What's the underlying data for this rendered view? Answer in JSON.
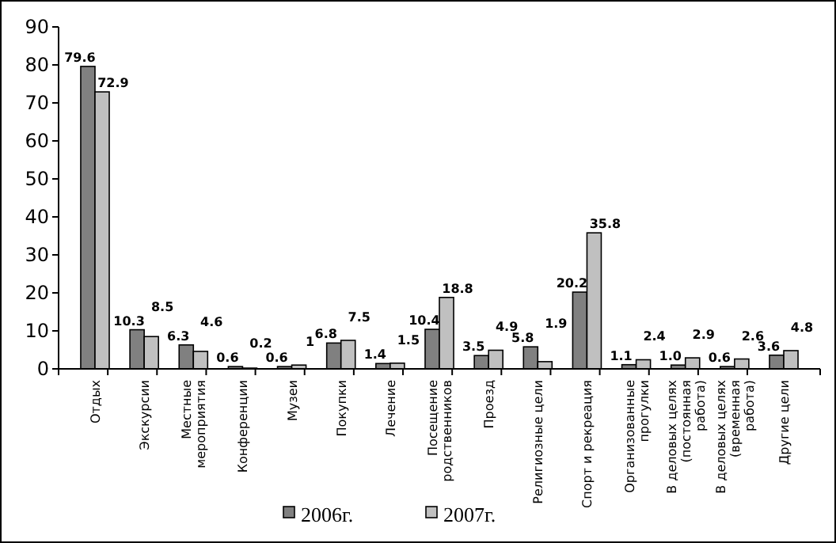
{
  "chart_data": {
    "type": "bar",
    "categories": [
      "Отдых",
      "Экскурсии",
      "Местные мероприятия",
      "Конференции",
      "Музеи",
      "Покупки",
      "Лечение",
      "Посещение родственников",
      "Проезд",
      "Религиозные цели",
      "Спорт и рекреация",
      "Организованные прогулки",
      "В деловых целях (постоянная работа)",
      "В деловых целях (временная работа)",
      "Другие цели"
    ],
    "series": [
      {
        "name": "2006г.",
        "color": "#808080",
        "values": [
          79.6,
          10.3,
          6.3,
          0.6,
          0.6,
          6.8,
          1.4,
          10.4,
          3.5,
          5.8,
          20.2,
          1.1,
          1.0,
          0.6,
          3.6
        ],
        "value_labels": [
          "79.6",
          "10.3",
          "6.3",
          "0.6",
          "0.6",
          "6.8",
          "1.4",
          "10.4",
          "3.5",
          "5.8",
          "20.2",
          "1.1",
          "1.0",
          "0.6",
          "3.6"
        ]
      },
      {
        "name": "2007г.",
        "color": "#c0c0c0",
        "values": [
          72.9,
          8.5,
          4.6,
          0.2,
          1,
          7.5,
          1.5,
          18.8,
          4.9,
          1.9,
          35.8,
          2.4,
          2.9,
          2.6,
          4.8
        ],
        "value_labels": [
          "72.9",
          "8.5",
          "4.6",
          "0.2",
          "1",
          "7.5",
          "1.5",
          "18.8",
          "4.9",
          "1.9",
          "35.8",
          "2.4",
          "2.9",
          "2.6",
          "4.8"
        ]
      }
    ],
    "ylim": [
      0,
      90
    ],
    "yticks": [
      0,
      10,
      20,
      30,
      40,
      50,
      60,
      70,
      80,
      90
    ],
    "grid": false,
    "legend": "bottom"
  }
}
